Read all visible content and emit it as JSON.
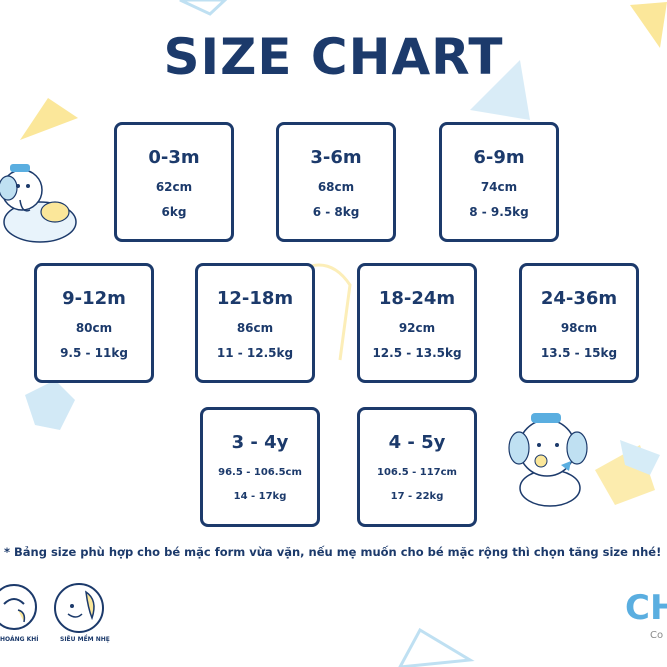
{
  "title": "SIZE CHART",
  "cards": [
    {
      "age": "0-3m",
      "length": "62cm",
      "weight": "6kg"
    },
    {
      "age": "3-6m",
      "length": "68cm",
      "weight": "6 - 8kg"
    },
    {
      "age": "6-9m",
      "length": "74cm",
      "weight": "8 - 9.5kg"
    },
    {
      "age": "9-12m",
      "length": "80cm",
      "weight": "9.5 - 11kg"
    },
    {
      "age": "12-18m",
      "length": "86cm",
      "weight": "11 - 12.5kg"
    },
    {
      "age": "18-24m",
      "length": "92cm",
      "weight": "12.5 - 13.5kg"
    },
    {
      "age": "24-36m",
      "length": "98cm",
      "weight": "13.5 - 15kg"
    },
    {
      "age": "3 - 4y",
      "length": "96.5 - 106.5cm",
      "weight": "14 - 17kg"
    },
    {
      "age": "4 - 5y",
      "length": "106.5 - 117cm",
      "weight": "17 - 22kg"
    }
  ],
  "note": "* Bảng size phù hợp cho bé mặc form vừa vặn, nếu mẹ muốn cho bé mặc rộng thì chọn tăng size nhé!",
  "badges": [
    {
      "label": "HOÁNG KHÍ",
      "icon": "breathable-icon"
    },
    {
      "label": "SIÊU MỀM NHẸ",
      "icon": "soft-light-icon"
    }
  ],
  "brand": {
    "name": "CH",
    "tagline": "Co"
  },
  "colors": {
    "navy": "#1c3a6b",
    "light_blue": "#bfe0f2",
    "yellow": "#fbe79a",
    "brand_blue": "#5aaee0"
  }
}
